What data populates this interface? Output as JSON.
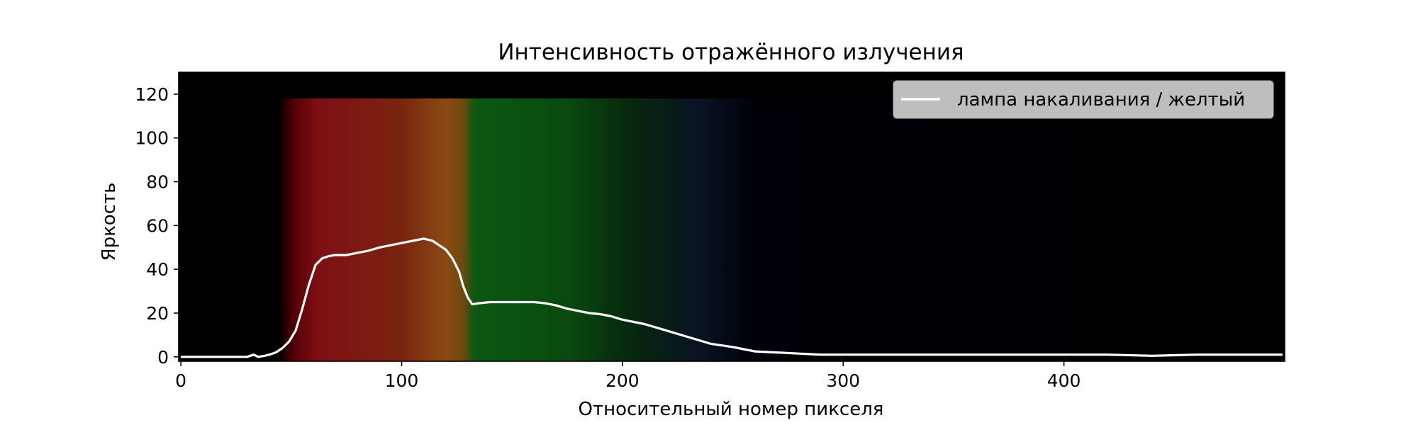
{
  "chart_data": {
    "type": "line",
    "title": "Интенсивность отражённого излучения",
    "xlabel": "Относительный номер пикселя",
    "ylabel": "Яркость",
    "xlim": [
      -1,
      500
    ],
    "ylim": [
      -2,
      130
    ],
    "xticks": [
      0,
      100,
      200,
      300,
      400
    ],
    "yticks": [
      0,
      20,
      40,
      60,
      80,
      100,
      120
    ],
    "grid": false,
    "legend_position": "top-right",
    "background": "spectrum image (black with red, orange, green, blue bands)",
    "colors": {
      "line": "#ffffff",
      "background": "#000000",
      "legend_box": "#c8c8c8"
    },
    "series": [
      {
        "name": "лампа накаливания / желтый",
        "x": [
          0,
          10,
          20,
          30,
          33,
          35,
          38,
          40,
          43,
          46,
          49,
          52,
          55,
          58,
          61,
          64,
          67,
          70,
          75,
          80,
          85,
          90,
          95,
          100,
          105,
          110,
          114,
          117,
          120,
          123,
          126,
          128,
          130,
          132,
          135,
          140,
          150,
          160,
          165,
          170,
          175,
          180,
          185,
          190,
          195,
          200,
          210,
          220,
          230,
          240,
          250,
          255,
          260,
          270,
          280,
          290,
          300,
          320,
          350,
          380,
          400,
          420,
          440,
          460,
          480,
          499
        ],
        "y": [
          0,
          0,
          0,
          0,
          1,
          0,
          0.5,
          1,
          2,
          4,
          7,
          12,
          22,
          33,
          42,
          45,
          46,
          46.5,
          46.5,
          47.5,
          48.5,
          50,
          51,
          52,
          53,
          54,
          53,
          51,
          49,
          45,
          39,
          32,
          27,
          24,
          24.5,
          25,
          25,
          25,
          24.5,
          23.5,
          22,
          21,
          20,
          19.5,
          18.5,
          17,
          15,
          12,
          9,
          6,
          4.5,
          3.5,
          2.5,
          2,
          1.5,
          1,
          1,
          1,
          1,
          1,
          1,
          1,
          0.5,
          1,
          1,
          1
        ]
      }
    ]
  }
}
